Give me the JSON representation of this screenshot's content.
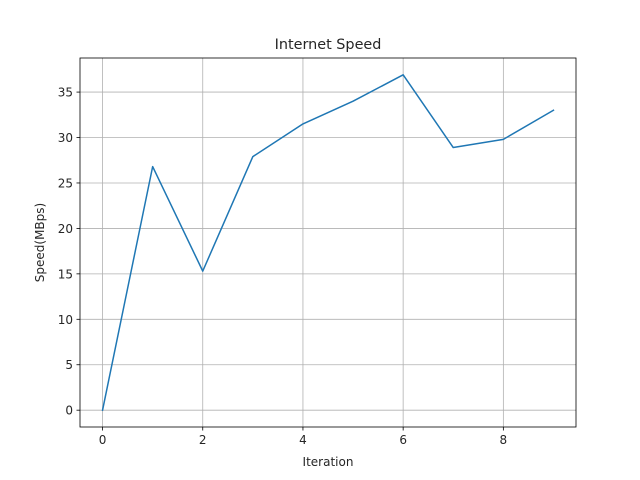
{
  "chart_data": {
    "type": "line",
    "title": "Internet Speed",
    "xlabel": "Iteration",
    "ylabel": "Speed(MBps)",
    "x": [
      0,
      1,
      2,
      3,
      4,
      5,
      6,
      7,
      8,
      9
    ],
    "series": [
      {
        "values": [
          0,
          26.8,
          15.3,
          27.9,
          31.5,
          34.0,
          36.9,
          28.9,
          29.8,
          33.0
        ]
      }
    ],
    "xlim": [
      -0.45,
      9.45
    ],
    "ylim": [
      -1.85,
      38.75
    ],
    "xticks": [
      0,
      2,
      4,
      6,
      8
    ],
    "yticks": [
      0,
      5,
      10,
      15,
      20,
      25,
      30,
      35
    ],
    "grid": true,
    "colors": {
      "line": "#1f77b4",
      "grid": "#b0b0b0",
      "axes": "#000000"
    }
  }
}
